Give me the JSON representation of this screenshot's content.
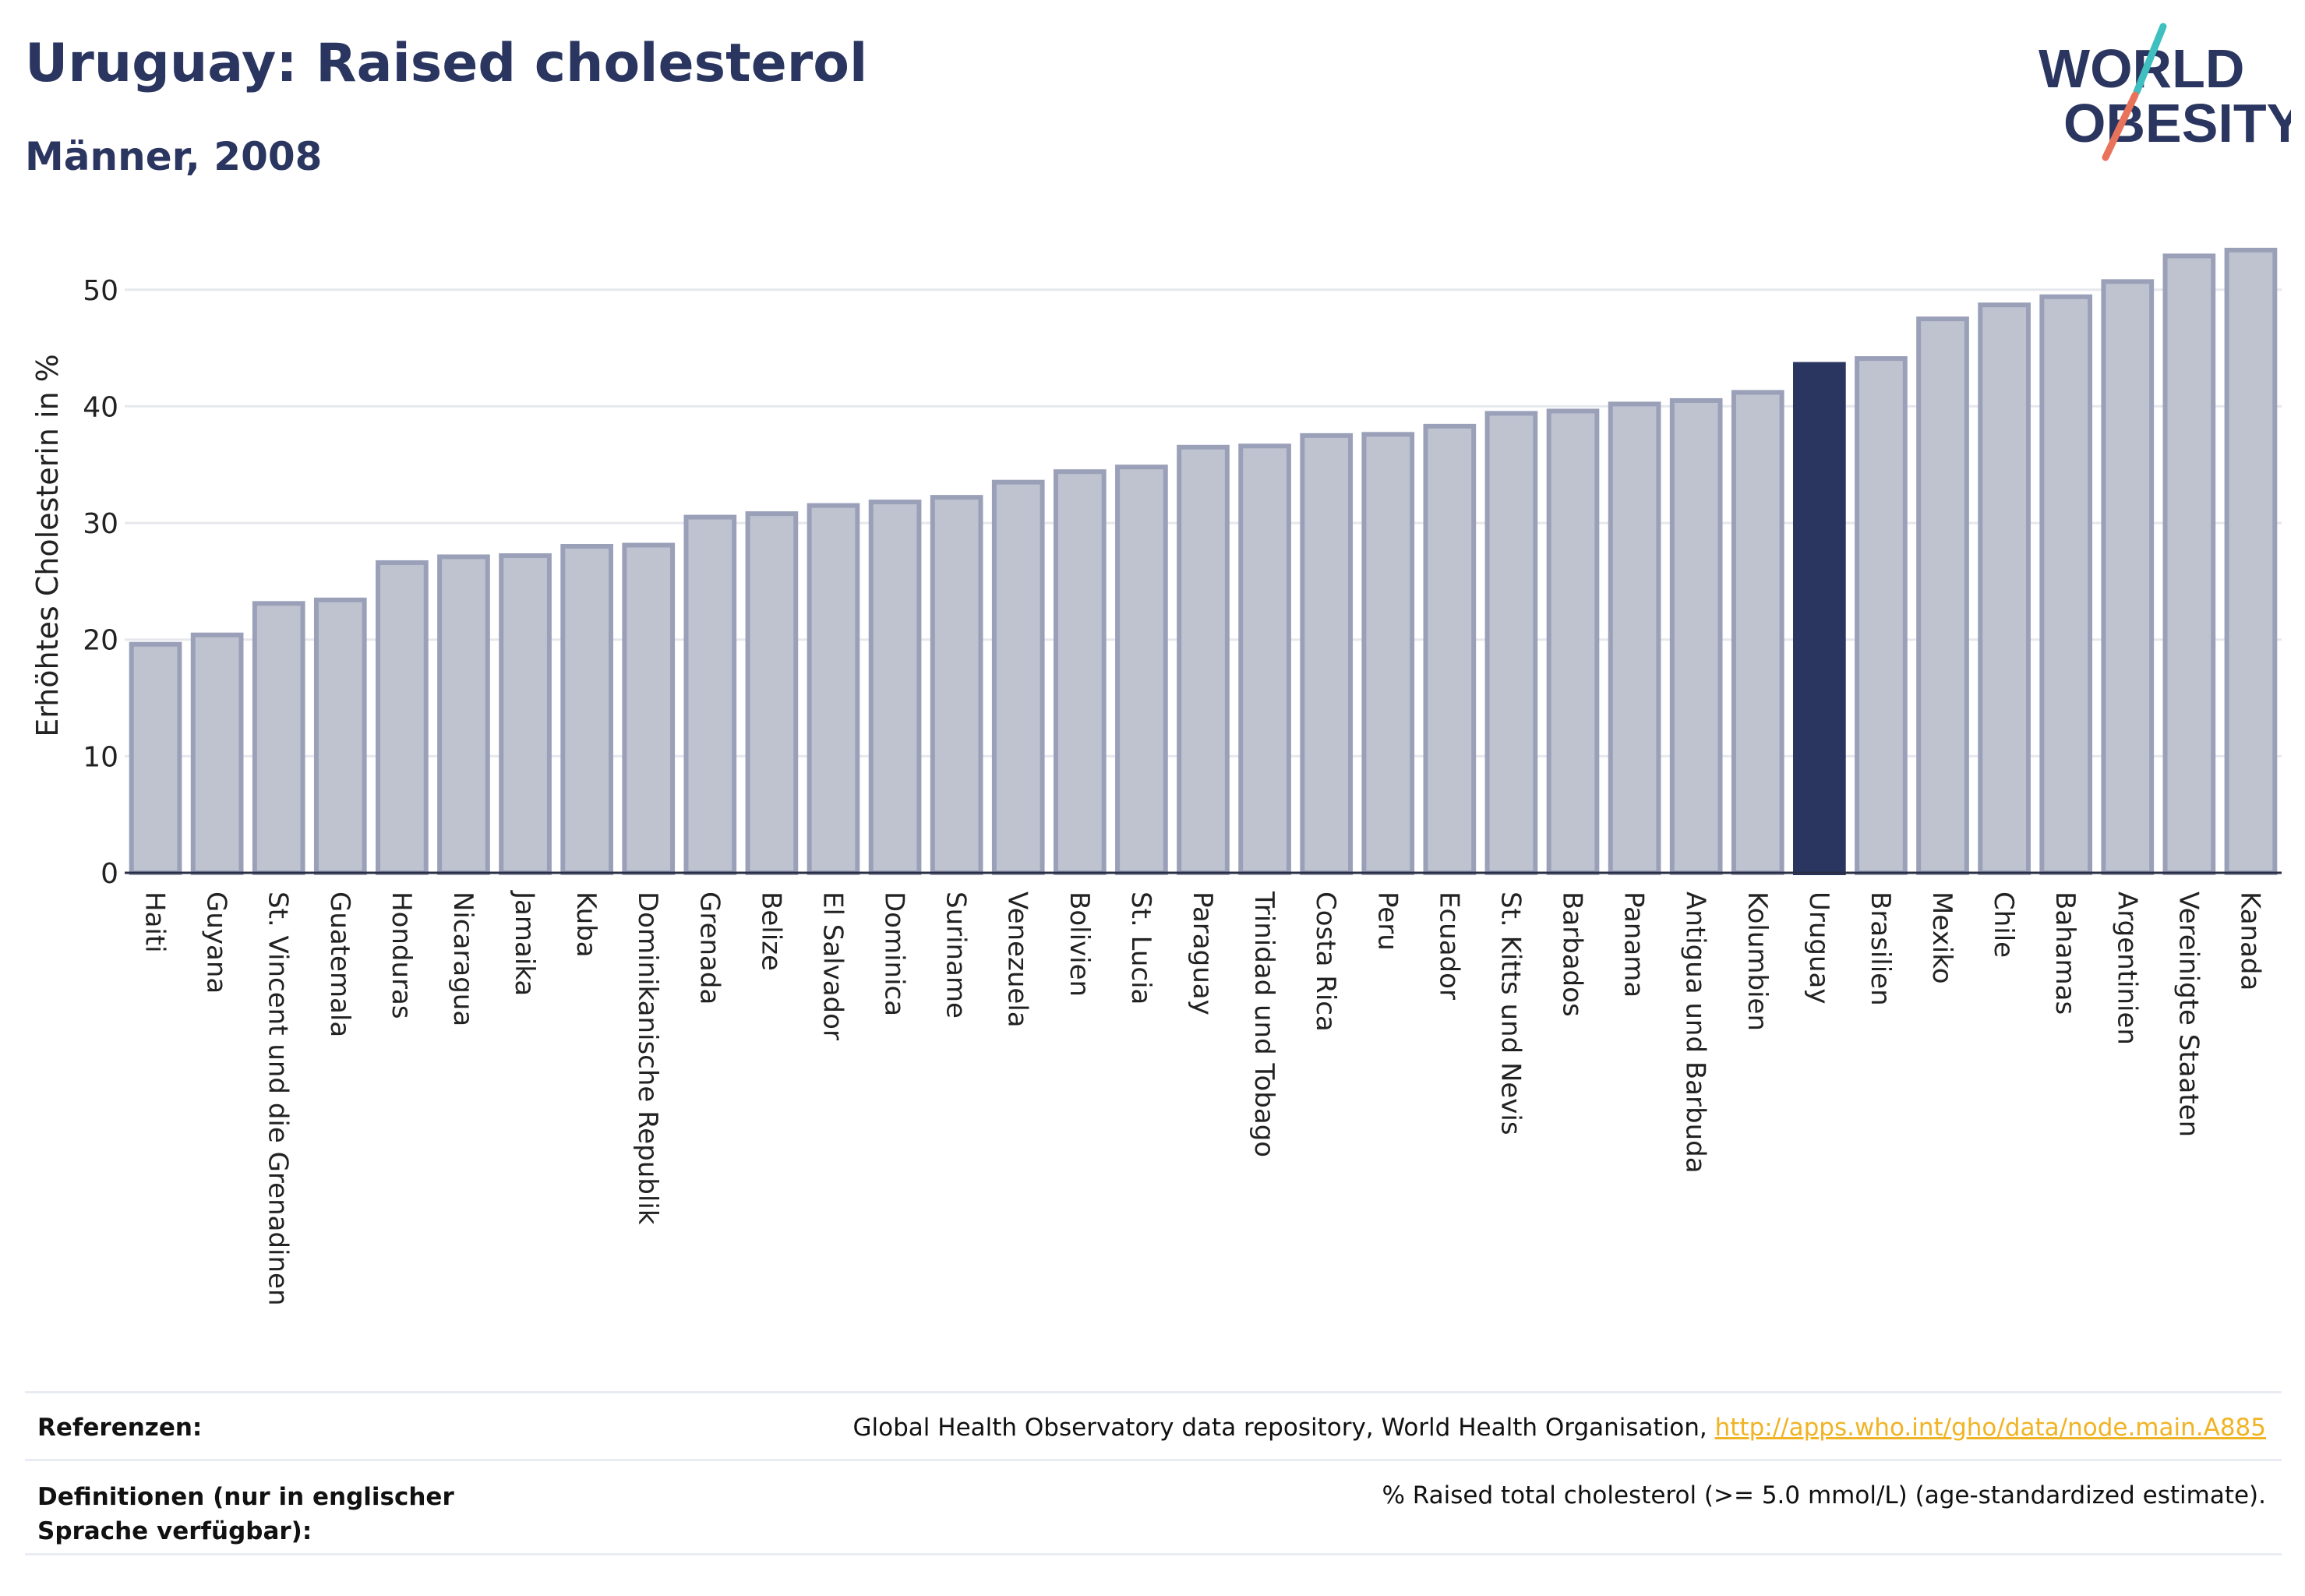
{
  "header": {
    "title": "Uruguay: Raised cholesterol",
    "subtitle": "Männer, 2008"
  },
  "logo": {
    "line1": "WORLD",
    "line2": "OBESITY",
    "accent_teal": "#3fbfbf",
    "accent_coral": "#e8735a",
    "text_color": "#2a3560"
  },
  "chart_data": {
    "type": "bar",
    "ylabel": "Erhöhtes Cholesterin in %",
    "ylim": [
      0,
      56
    ],
    "yticks": [
      0,
      10,
      20,
      30,
      40,
      50
    ],
    "grid": true,
    "highlight": "Uruguay",
    "bar_color": "#bfc3d0",
    "bar_edge_color": "#9aa0b8",
    "highlight_color": "#2a3560",
    "categories": [
      "Haiti",
      "Guyana",
      "St. Vincent und die Grenadinen",
      "Guatemala",
      "Honduras",
      "Nicaragua",
      "Jamaika",
      "Kuba",
      "Dominikanische Republik",
      "Grenada",
      "Belize",
      "El Salvador",
      "Dominica",
      "Suriname",
      "Venezuela",
      "Bolivien",
      "St. Lucia",
      "Paraguay",
      "Trinidad und Tobago",
      "Costa Rica",
      "Peru",
      "Ecuador",
      "St. Kitts und Nevis",
      "Barbados",
      "Panama",
      "Antigua und Barbuda",
      "Kolumbien",
      "Uruguay",
      "Brasilien",
      "Mexiko",
      "Chile",
      "Bahamas",
      "Argentinien",
      "Vereinigte Staaten",
      "Kanada"
    ],
    "values": [
      19.6,
      20.4,
      23.1,
      23.4,
      26.6,
      27.1,
      27.2,
      28.0,
      28.1,
      30.5,
      30.8,
      31.5,
      31.8,
      32.2,
      33.5,
      34.4,
      34.8,
      36.5,
      36.6,
      37.5,
      37.6,
      38.3,
      39.4,
      39.6,
      40.2,
      40.5,
      41.2,
      43.6,
      44.1,
      47.5,
      48.7,
      49.4,
      50.7,
      52.9,
      53.4
    ]
  },
  "references": {
    "ref_label": "Referenzen:",
    "ref_text": "Global Health Observatory data repository, World Health Organisation, ",
    "ref_link": "http://apps.who.int/gho/data/node.main.A885",
    "def_label": "Definitionen (nur in englischer Sprache verfügbar):",
    "def_text": "% Raised total cholesterol (>= 5.0 mmol/L) (age-standardized estimate)."
  }
}
